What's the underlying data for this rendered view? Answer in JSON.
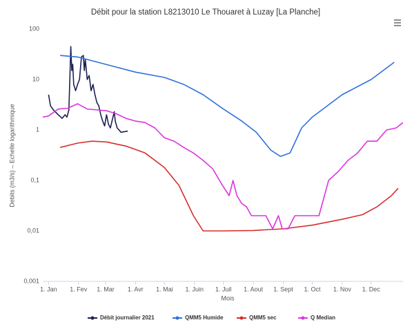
{
  "chart_data": {
    "type": "line",
    "title": "Débit pour la station L8213010 Le Thouaret à Luzay [La Planche]",
    "x_label": "Mois",
    "y_label": "Debits (m3/s) – Echelle logarithmique",
    "log_y": true,
    "grid": false,
    "legend": "bottom",
    "xlim": [
      -6,
      367
    ],
    "xticks": [
      {
        "value": 0,
        "label": "1. Jan"
      },
      {
        "value": 31,
        "label": "1. Fev"
      },
      {
        "value": 59,
        "label": "1. Mar"
      },
      {
        "value": 90,
        "label": "1. Avr"
      },
      {
        "value": 120,
        "label": "1. Mai"
      },
      {
        "value": 151,
        "label": "1. Juin"
      },
      {
        "value": 181,
        "label": "1. Juil"
      },
      {
        "value": 212,
        "label": "1. Aout"
      },
      {
        "value": 243,
        "label": "1. Sept"
      },
      {
        "value": 273,
        "label": "1. Oct"
      },
      {
        "value": 304,
        "label": "1. Nov"
      },
      {
        "value": 334,
        "label": "1. Dec"
      }
    ],
    "ylim": [
      0.001,
      100
    ],
    "yticks": [
      {
        "value": 0.001,
        "label": "0,001"
      },
      {
        "value": 0.01,
        "label": "0,01"
      },
      {
        "value": 0.1,
        "label": "0,1"
      },
      1,
      10,
      100
    ],
    "series": [
      {
        "name": "Débit journalier 2021",
        "color": "#1c2150",
        "x": [
          0,
          2,
          5,
          10,
          14,
          17,
          19,
          21,
          22,
          23,
          24,
          25,
          26,
          28,
          30,
          32,
          34,
          36,
          37,
          38,
          40,
          42,
          44,
          46,
          48,
          50,
          52,
          54,
          56,
          58,
          60,
          62,
          64,
          66,
          68,
          69,
          71,
          75,
          82
        ],
        "values": [
          5,
          3,
          2.5,
          2,
          1.7,
          2,
          1.8,
          2.5,
          10,
          45,
          15,
          20,
          8,
          6,
          8,
          10,
          28,
          30,
          15,
          25,
          10,
          12,
          6,
          8,
          5,
          3.5,
          3,
          2,
          1.5,
          1.2,
          2,
          1.3,
          1.1,
          1.6,
          2.3,
          1.5,
          1.1,
          0.9,
          0.95
        ]
      },
      {
        "name": "QMM5 Humide",
        "color": "#2f6fdc",
        "x": [
          12,
          30,
          59,
          90,
          120,
          140,
          160,
          181,
          200,
          215,
          230,
          240,
          250,
          262,
          273,
          304,
          334,
          358
        ],
        "values": [
          30,
          28,
          20,
          14,
          11,
          8,
          5,
          2.6,
          1.5,
          0.9,
          0.4,
          0.3,
          0.35,
          1.1,
          1.8,
          5,
          10,
          22
        ]
      },
      {
        "name": "QMM5 sec",
        "color": "#d62d2d",
        "x": [
          12,
          30,
          45,
          60,
          80,
          100,
          120,
          135,
          150,
          160,
          181,
          212,
          243,
          273,
          304,
          325,
          340,
          355,
          362
        ],
        "values": [
          0.45,
          0.55,
          0.6,
          0.58,
          0.48,
          0.35,
          0.18,
          0.08,
          0.02,
          0.01,
          0.01,
          0.0102,
          0.011,
          0.013,
          0.017,
          0.021,
          0.03,
          0.05,
          0.07
        ]
      },
      {
        "name": "Q Median",
        "color": "#dd33dd",
        "x": [
          -6,
          0,
          10,
          20,
          30,
          40,
          60,
          70,
          80,
          90,
          100,
          110,
          120,
          130,
          140,
          150,
          160,
          170,
          180,
          187,
          191,
          195,
          200,
          205,
          210,
          225,
          232,
          238,
          242,
          248,
          255,
          265,
          280,
          290,
          300,
          310,
          320,
          330,
          340,
          350,
          360,
          367
        ],
        "values": [
          1.8,
          1.9,
          2.6,
          2.7,
          3.3,
          2.6,
          2.4,
          2.1,
          1.7,
          1.5,
          1.4,
          1.1,
          0.7,
          0.6,
          0.45,
          0.35,
          0.25,
          0.17,
          0.08,
          0.05,
          0.1,
          0.05,
          0.035,
          0.03,
          0.02,
          0.02,
          0.011,
          0.02,
          0.011,
          0.011,
          0.02,
          0.02,
          0.02,
          0.1,
          0.15,
          0.25,
          0.35,
          0.6,
          0.6,
          1,
          1.1,
          1.4
        ]
      }
    ]
  }
}
